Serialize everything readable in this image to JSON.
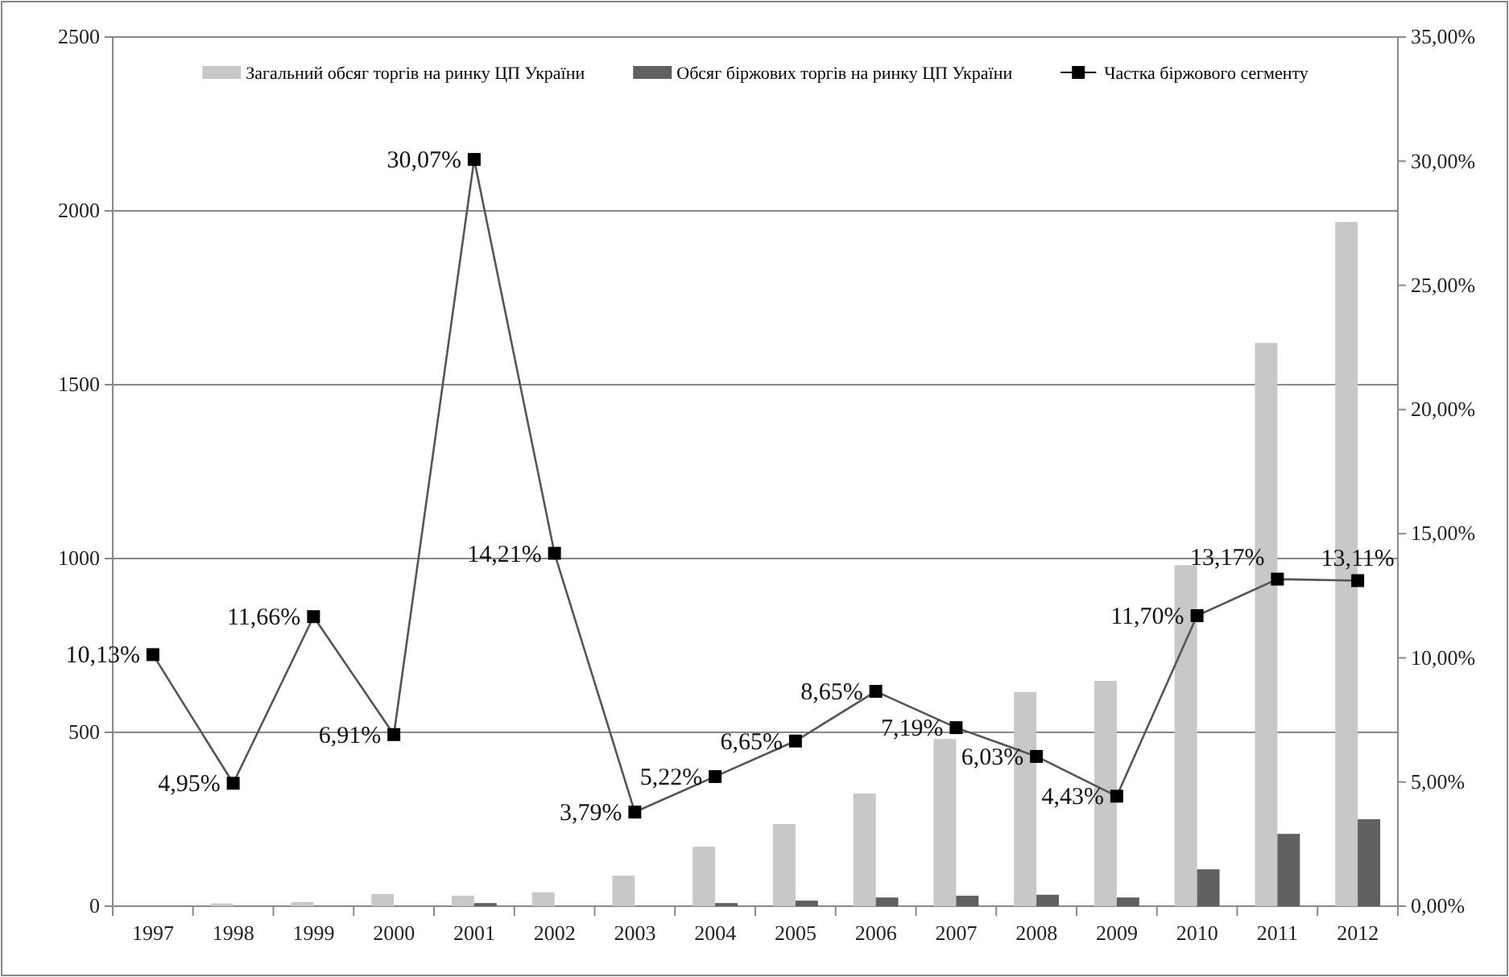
{
  "chart_data": {
    "type": "bar",
    "categories": [
      "1997",
      "1998",
      "1999",
      "2000",
      "2001",
      "2002",
      "2003",
      "2004",
      "2005",
      "2006",
      "2007",
      "2008",
      "2009",
      "2010",
      "2011",
      "2012"
    ],
    "series": [
      {
        "name": "Загальний обсяг торгів на ринку ЦП України",
        "color": "#c8c8c8",
        "values": [
          null,
          8,
          12,
          35,
          30,
          40,
          88,
          171,
          236,
          324,
          481,
          616,
          648,
          981,
          1620,
          1968
        ]
      },
      {
        "name": "Обсяг біржових торгів на ринку ЦП України",
        "color": "#606060",
        "values": [
          null,
          null,
          null,
          null,
          9,
          null,
          null,
          9,
          16,
          25,
          30,
          33,
          25,
          106,
          208,
          250
        ]
      },
      {
        "name": "Частка біржового сегменту",
        "type": "line",
        "axis": "y2",
        "color": "#000000",
        "marker": "square",
        "values": [
          10.13,
          4.95,
          11.66,
          6.91,
          30.07,
          14.21,
          3.79,
          5.22,
          6.65,
          8.65,
          7.19,
          6.03,
          4.43,
          11.7,
          13.17,
          13.11
        ],
        "value_labels": [
          "10,13%",
          "4,95%",
          "11,66%",
          "6,91%",
          "30,07%",
          "14,21%",
          "3,79%",
          "5,22%",
          "6,65%",
          "8,65%",
          "7,19%",
          "6,03%",
          "4,43%",
          "11,70%",
          "13,17%",
          "13,11%"
        ]
      }
    ],
    "ylim": [
      0,
      2500
    ],
    "yticks": [
      0,
      500,
      1000,
      1500,
      2000,
      2500
    ],
    "y2lim": [
      0,
      35
    ],
    "y2ticks": [
      {
        "value": 0,
        "label": "0,00%"
      },
      {
        "value": 5,
        "label": "5,00%"
      },
      {
        "value": 10,
        "label": "10,00%"
      },
      {
        "value": 15,
        "label": "15,00%"
      },
      {
        "value": 20,
        "label": "20,00%"
      },
      {
        "value": 25,
        "label": "25,00%"
      },
      {
        "value": 30,
        "label": "30,00%"
      },
      {
        "value": 35,
        "label": "35,00%"
      }
    ],
    "grid": "y",
    "legend": "top"
  }
}
